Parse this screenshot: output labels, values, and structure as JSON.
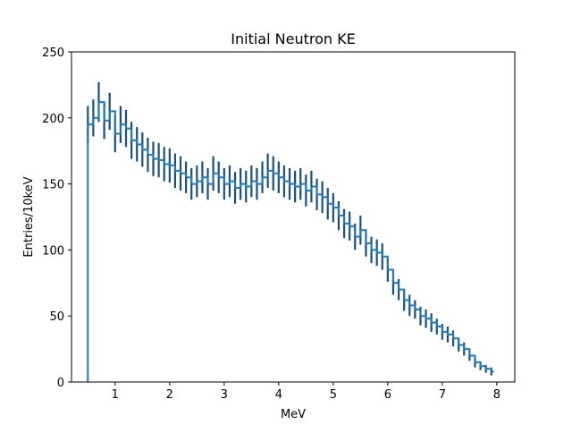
{
  "chart_data": {
    "type": "histogram-step",
    "title": "Initial Neutron KE",
    "xlabel": "MeV",
    "ylabel": "Entries/10keV",
    "xlim": [
      0.2,
      8.33
    ],
    "ylim": [
      0,
      250
    ],
    "xticks": [
      1,
      2,
      3,
      4,
      5,
      6,
      7,
      8
    ],
    "yticks": [
      0,
      50,
      100,
      150,
      200,
      250
    ],
    "grid": false,
    "legend": "none",
    "colors": {
      "line": "#1f77b4",
      "errorbar": "#1a4f7a"
    },
    "series": [
      {
        "x": [
          0.5,
          0.6,
          0.7,
          0.8,
          0.9,
          1.0,
          1.1,
          1.2,
          1.3,
          1.4,
          1.5,
          1.6,
          1.7,
          1.8,
          1.9,
          2.0,
          2.1,
          2.2,
          2.3,
          2.4,
          2.5,
          2.6,
          2.7,
          2.8,
          2.9,
          3.0,
          3.1,
          3.2,
          3.3,
          3.4,
          3.5,
          3.6,
          3.7,
          3.8,
          3.9,
          4.0,
          4.1,
          4.2,
          4.3,
          4.4,
          4.5,
          4.6,
          4.7,
          4.8,
          4.9,
          5.0,
          5.1,
          5.2,
          5.3,
          5.4,
          5.5,
          5.6,
          5.7,
          5.8,
          5.9,
          6.0,
          6.1,
          6.2,
          6.3,
          6.4,
          6.5,
          6.6,
          6.7,
          6.8,
          6.9,
          7.0,
          7.1,
          7.2,
          7.3,
          7.4,
          7.5,
          7.6,
          7.7,
          7.8,
          7.9
        ],
        "y": [
          195,
          200,
          212,
          198,
          205,
          188,
          195,
          192,
          183,
          180,
          176,
          172,
          169,
          168,
          165,
          164,
          160,
          158,
          155,
          150,
          152,
          155,
          150,
          158,
          155,
          150,
          152,
          147,
          150,
          148,
          152,
          150,
          155,
          160,
          158,
          155,
          152,
          150,
          148,
          150,
          145,
          148,
          142,
          140,
          135,
          132,
          126,
          120,
          118,
          110,
          115,
          105,
          100,
          98,
          95,
          85,
          75,
          70,
          62,
          58,
          55,
          50,
          48,
          45,
          42,
          38,
          36,
          33,
          28,
          25,
          20,
          15,
          12,
          10,
          8
        ],
        "yerr": [
          14,
          14,
          15,
          14,
          14,
          14,
          14,
          14,
          14,
          13,
          13,
          13,
          13,
          13,
          13,
          13,
          13,
          13,
          12,
          12,
          12,
          12,
          12,
          13,
          12,
          12,
          12,
          12,
          12,
          12,
          12,
          12,
          12,
          13,
          13,
          12,
          12,
          12,
          12,
          12,
          12,
          12,
          12,
          12,
          12,
          11,
          11,
          11,
          11,
          10,
          11,
          10,
          10,
          10,
          10,
          9,
          9,
          8,
          8,
          8,
          7,
          7,
          7,
          7,
          6,
          6,
          6,
          6,
          5,
          5,
          4,
          4,
          3,
          3,
          3
        ]
      }
    ]
  }
}
